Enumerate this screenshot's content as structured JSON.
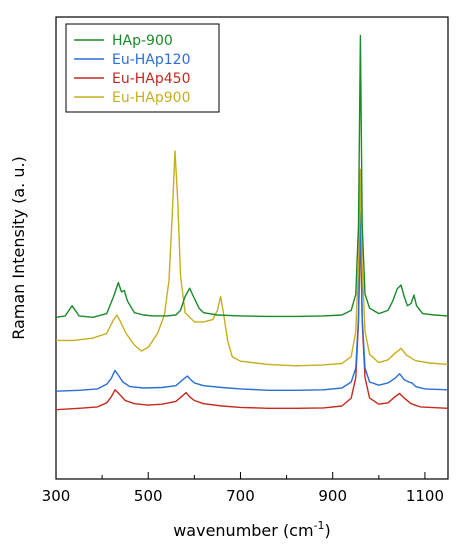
{
  "chart_data": {
    "type": "line",
    "title": "",
    "xlabel": "wavenumber (cm",
    "xlabel_sup": "-1",
    "xlabel_close": ")",
    "ylabel": "Raman Intensity  (a. u.)",
    "xlim": [
      300,
      1150
    ],
    "ylim": [
      0,
      100
    ],
    "x_ticks": [
      300,
      500,
      700,
      900,
      1100
    ],
    "x_tick_labels": [
      "300",
      "500",
      "700",
      "900",
      "1100"
    ],
    "y_ticks_shown": false,
    "grid": false,
    "legend_position": "top-left",
    "series": [
      {
        "name": "HAp-900",
        "color": "#1a8a2a",
        "points": [
          [
            300,
            35
          ],
          [
            320,
            35.3
          ],
          [
            335,
            37.5
          ],
          [
            350,
            35.3
          ],
          [
            380,
            35
          ],
          [
            410,
            35.8
          ],
          [
            425,
            39.5
          ],
          [
            435,
            42.5
          ],
          [
            442,
            40.5
          ],
          [
            448,
            40.8
          ],
          [
            455,
            38.5
          ],
          [
            470,
            36
          ],
          [
            490,
            35.5
          ],
          [
            510,
            35.3
          ],
          [
            540,
            35.3
          ],
          [
            560,
            35.5
          ],
          [
            570,
            36.5
          ],
          [
            580,
            39.5
          ],
          [
            590,
            41.3
          ],
          [
            598,
            39.5
          ],
          [
            610,
            37
          ],
          [
            620,
            36
          ],
          [
            650,
            35.5
          ],
          [
            700,
            35.3
          ],
          [
            760,
            35.2
          ],
          [
            820,
            35.2
          ],
          [
            880,
            35.3
          ],
          [
            920,
            35.5
          ],
          [
            940,
            36.5
          ],
          [
            950,
            40
          ],
          [
            956,
            55
          ],
          [
            960,
            96
          ],
          [
            964,
            55
          ],
          [
            970,
            40
          ],
          [
            980,
            37
          ],
          [
            1000,
            35.8
          ],
          [
            1020,
            36.5
          ],
          [
            1030,
            38.5
          ],
          [
            1040,
            41.2
          ],
          [
            1048,
            42
          ],
          [
            1055,
            39.5
          ],
          [
            1062,
            37.5
          ],
          [
            1070,
            38
          ],
          [
            1076,
            39.8
          ],
          [
            1082,
            37.5
          ],
          [
            1095,
            35.8
          ],
          [
            1120,
            35.5
          ],
          [
            1150,
            35.3
          ]
        ]
      },
      {
        "name": "Eu-HAp120",
        "color": "#2a6fd6",
        "points": [
          [
            300,
            19
          ],
          [
            350,
            19.2
          ],
          [
            390,
            19.5
          ],
          [
            410,
            20.5
          ],
          [
            420,
            21.8
          ],
          [
            428,
            23.5
          ],
          [
            435,
            22.5
          ],
          [
            445,
            21
          ],
          [
            460,
            20
          ],
          [
            490,
            19.7
          ],
          [
            530,
            19.8
          ],
          [
            560,
            20.2
          ],
          [
            575,
            21.5
          ],
          [
            585,
            22.3
          ],
          [
            592,
            21.5
          ],
          [
            600,
            20.8
          ],
          [
            620,
            20.2
          ],
          [
            660,
            19.8
          ],
          [
            700,
            19.5
          ],
          [
            760,
            19.2
          ],
          [
            820,
            19.2
          ],
          [
            880,
            19.3
          ],
          [
            920,
            19.7
          ],
          [
            940,
            21
          ],
          [
            950,
            24
          ],
          [
            956,
            35
          ],
          [
            960,
            58
          ],
          [
            964,
            35
          ],
          [
            970,
            24
          ],
          [
            980,
            21
          ],
          [
            1000,
            20.3
          ],
          [
            1020,
            20.8
          ],
          [
            1035,
            21.8
          ],
          [
            1045,
            22.8
          ],
          [
            1055,
            21.5
          ],
          [
            1065,
            21
          ],
          [
            1072,
            20.8
          ],
          [
            1080,
            20
          ],
          [
            1100,
            19.5
          ],
          [
            1150,
            19.3
          ]
        ]
      },
      {
        "name": "Eu-HAp450",
        "color": "#c42a1e",
        "points": [
          [
            300,
            15
          ],
          [
            350,
            15.3
          ],
          [
            390,
            15.6
          ],
          [
            410,
            16.5
          ],
          [
            420,
            17.8
          ],
          [
            428,
            19.3
          ],
          [
            436,
            18.5
          ],
          [
            450,
            17
          ],
          [
            470,
            16.3
          ],
          [
            500,
            16
          ],
          [
            530,
            16.2
          ],
          [
            560,
            16.8
          ],
          [
            572,
            17.8
          ],
          [
            582,
            18.7
          ],
          [
            590,
            17.8
          ],
          [
            600,
            17
          ],
          [
            620,
            16.3
          ],
          [
            660,
            15.8
          ],
          [
            700,
            15.5
          ],
          [
            760,
            15.3
          ],
          [
            820,
            15.3
          ],
          [
            880,
            15.4
          ],
          [
            920,
            15.8
          ],
          [
            940,
            17.5
          ],
          [
            950,
            22
          ],
          [
            956,
            34
          ],
          [
            960,
            55
          ],
          [
            964,
            34
          ],
          [
            970,
            22
          ],
          [
            980,
            17.5
          ],
          [
            1000,
            16.2
          ],
          [
            1020,
            16.5
          ],
          [
            1035,
            17.8
          ],
          [
            1045,
            18.5
          ],
          [
            1055,
            17.5
          ],
          [
            1070,
            16.3
          ],
          [
            1090,
            15.6
          ],
          [
            1150,
            15.3
          ]
        ]
      },
      {
        "name": "Eu-HAp900",
        "color": "#c8ae1e",
        "points": [
          [
            300,
            30
          ],
          [
            340,
            30
          ],
          [
            380,
            30.5
          ],
          [
            410,
            31.5
          ],
          [
            425,
            34.5
          ],
          [
            432,
            35.5
          ],
          [
            440,
            34
          ],
          [
            452,
            31.5
          ],
          [
            470,
            29
          ],
          [
            485,
            27.7
          ],
          [
            500,
            28.5
          ],
          [
            520,
            31.5
          ],
          [
            535,
            35.5
          ],
          [
            545,
            43
          ],
          [
            552,
            57
          ],
          [
            558,
            71
          ],
          [
            564,
            60
          ],
          [
            570,
            44
          ],
          [
            580,
            36
          ],
          [
            600,
            34
          ],
          [
            620,
            34
          ],
          [
            640,
            34.5
          ],
          [
            650,
            36.5
          ],
          [
            657,
            39.5
          ],
          [
            663,
            36
          ],
          [
            672,
            30
          ],
          [
            682,
            26.5
          ],
          [
            700,
            25.5
          ],
          [
            760,
            24.8
          ],
          [
            820,
            24.5
          ],
          [
            880,
            24.7
          ],
          [
            920,
            25
          ],
          [
            940,
            26.5
          ],
          [
            950,
            32
          ],
          [
            956,
            46
          ],
          [
            960,
            67
          ],
          [
            964,
            46
          ],
          [
            970,
            32
          ],
          [
            980,
            27
          ],
          [
            1000,
            25.2
          ],
          [
            1020,
            25.8
          ],
          [
            1035,
            27.2
          ],
          [
            1048,
            28.3
          ],
          [
            1060,
            26.8
          ],
          [
            1080,
            25.6
          ],
          [
            1110,
            25.1
          ],
          [
            1150,
            24.8
          ]
        ]
      }
    ]
  }
}
